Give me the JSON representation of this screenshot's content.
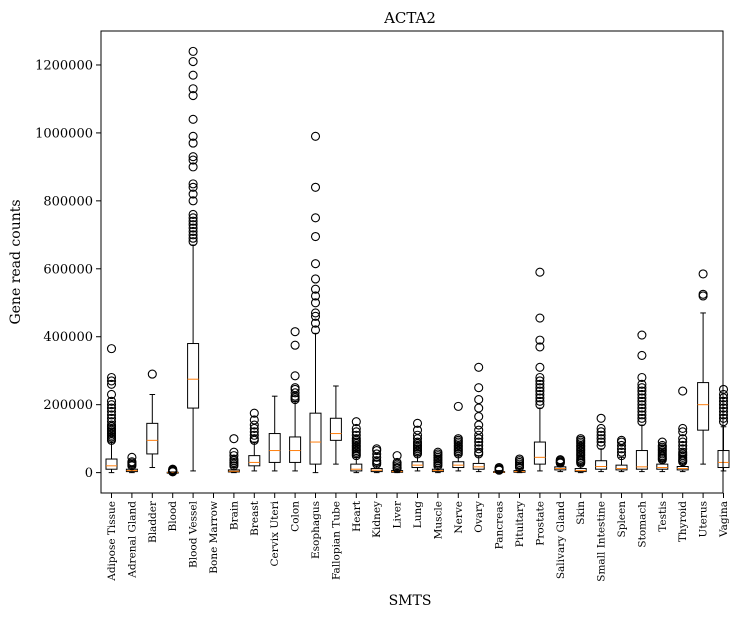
{
  "chart_data": {
    "type": "box",
    "title": "ACTA2",
    "xlabel": "SMTS",
    "ylabel": "Gene read counts",
    "ylim": [
      -60000,
      1300000
    ],
    "yticks": [
      0,
      200000,
      400000,
      600000,
      800000,
      1000000,
      1200000
    ],
    "ytick_labels": [
      "0",
      "200000",
      "400000",
      "600000",
      "800000",
      "1000000",
      "1200000"
    ],
    "grid": false,
    "legend": "none",
    "colors": {
      "box": "#000000",
      "median": "#ff7f0e",
      "flier": "#000000"
    },
    "categories": [
      "Adipose Tissue",
      "Adrenal Gland",
      "Bladder",
      "Blood",
      "Blood Vessel",
      "Bone Marrow",
      "Brain",
      "Breast",
      "Cervix Uteri",
      "Colon",
      "Esophagus",
      "Fallopian Tube",
      "Heart",
      "Kidney",
      "Liver",
      "Lung",
      "Muscle",
      "Nerve",
      "Ovary",
      "Pancreas",
      "Pituitary",
      "Prostate",
      "Salivary Gland",
      "Skin",
      "Small Intestine",
      "Spleen",
      "Stomach",
      "Testis",
      "Thyroid",
      "Uterus",
      "Vagina"
    ],
    "boxes": [
      {
        "category": "Adipose Tissue",
        "whislo": 0,
        "q1": 10000,
        "med": 20000,
        "q3": 40000,
        "whishi": 90000,
        "fliers": [
          95000,
          100000,
          105000,
          110000,
          115000,
          120000,
          125000,
          130000,
          135000,
          140000,
          150000,
          160000,
          170000,
          180000,
          190000,
          200000,
          210000,
          230000,
          260000,
          270000,
          280000,
          365000
        ]
      },
      {
        "category": "Adrenal Gland",
        "whislo": 0,
        "q1": 3000,
        "med": 6000,
        "q3": 10000,
        "whishi": 18000,
        "fliers": [
          20000,
          24000,
          28000,
          32000,
          45000
        ]
      },
      {
        "category": "Bladder",
        "whislo": 15000,
        "q1": 55000,
        "med": 95000,
        "q3": 145000,
        "whishi": 230000,
        "fliers": [
          290000
        ]
      },
      {
        "category": "Blood",
        "whislo": 0,
        "q1": 200,
        "med": 500,
        "q3": 1000,
        "whishi": 2000,
        "fliers": [
          2500,
          3000,
          4000,
          5000,
          6000,
          8000,
          10000
        ]
      },
      {
        "category": "Blood Vessel",
        "whislo": 5000,
        "q1": 190000,
        "med": 275000,
        "q3": 380000,
        "whishi": 670000,
        "fliers": [
          680000,
          690000,
          700000,
          710000,
          720000,
          730000,
          740000,
          750000,
          760000,
          800000,
          820000,
          840000,
          850000,
          900000,
          920000,
          930000,
          970000,
          990000,
          1040000,
          1110000,
          1130000,
          1170000,
          1210000,
          1240000
        ]
      },
      {
        "category": "Bone Marrow",
        "whislo": null,
        "q1": null,
        "med": null,
        "q3": null,
        "whishi": null,
        "fliers": []
      },
      {
        "category": "Brain",
        "whislo": 0,
        "q1": 2000,
        "med": 4000,
        "q3": 8000,
        "whishi": 16000,
        "fliers": [
          20000,
          25000,
          30000,
          35000,
          40000,
          50000,
          60000,
          100000
        ]
      },
      {
        "category": "Breast",
        "whislo": 5000,
        "q1": 20000,
        "med": 30000,
        "q3": 50000,
        "whishi": 90000,
        "fliers": [
          95000,
          100000,
          110000,
          120000,
          130000,
          140000,
          155000,
          175000
        ]
      },
      {
        "category": "Cervix Uteri",
        "whislo": 5000,
        "q1": 30000,
        "med": 65000,
        "q3": 115000,
        "whishi": 225000,
        "fliers": []
      },
      {
        "category": "Colon",
        "whislo": 5000,
        "q1": 30000,
        "med": 65000,
        "q3": 105000,
        "whishi": 210000,
        "fliers": [
          215000,
          220000,
          225000,
          235000,
          245000,
          250000,
          285000,
          375000,
          415000
        ]
      },
      {
        "category": "Esophagus",
        "whislo": 0,
        "q1": 25000,
        "med": 90000,
        "q3": 175000,
        "whishi": 410000,
        "fliers": [
          420000,
          440000,
          460000,
          470000,
          500000,
          520000,
          540000,
          570000,
          615000,
          695000,
          750000,
          840000,
          990000
        ]
      },
      {
        "category": "Fallopian Tube",
        "whislo": 25000,
        "q1": 95000,
        "med": 115000,
        "q3": 160000,
        "whishi": 255000,
        "fliers": []
      },
      {
        "category": "Heart",
        "whislo": 0,
        "q1": 5000,
        "med": 10000,
        "q3": 25000,
        "whishi": 45000,
        "fliers": [
          50000,
          55000,
          60000,
          65000,
          70000,
          75000,
          80000,
          85000,
          90000,
          95000,
          100000,
          110000,
          120000,
          130000,
          150000
        ]
      },
      {
        "category": "Kidney",
        "whislo": 0,
        "q1": 3000,
        "med": 7000,
        "q3": 12000,
        "whishi": 20000,
        "fliers": [
          25000,
          30000,
          35000,
          45000,
          55000,
          65000,
          70000
        ]
      },
      {
        "category": "Liver",
        "whislo": 0,
        "q1": 1000,
        "med": 3000,
        "q3": 6000,
        "whishi": 10000,
        "fliers": [
          12000,
          15000,
          20000,
          25000,
          30000,
          50000
        ]
      },
      {
        "category": "Lung",
        "whislo": 5000,
        "q1": 15000,
        "med": 22000,
        "q3": 32000,
        "whishi": 50000,
        "fliers": [
          55000,
          60000,
          65000,
          70000,
          75000,
          80000,
          85000,
          90000,
          100000,
          110000,
          125000,
          145000
        ]
      },
      {
        "category": "Muscle",
        "whislo": 0,
        "q1": 3000,
        "med": 6000,
        "q3": 10000,
        "whishi": 18000,
        "fliers": [
          20000,
          25000,
          30000,
          35000,
          40000,
          45000,
          50000,
          55000,
          60000
        ]
      },
      {
        "category": "Nerve",
        "whislo": 5000,
        "q1": 15000,
        "med": 22000,
        "q3": 32000,
        "whishi": 50000,
        "fliers": [
          55000,
          60000,
          65000,
          70000,
          75000,
          80000,
          85000,
          90000,
          95000,
          100000,
          195000
        ]
      },
      {
        "category": "Ovary",
        "whislo": 3000,
        "q1": 10000,
        "med": 17000,
        "q3": 27000,
        "whishi": 50000,
        "fliers": [
          55000,
          60000,
          70000,
          80000,
          90000,
          100000,
          110000,
          125000,
          140000,
          165000,
          190000,
          215000,
          250000,
          310000
        ]
      },
      {
        "category": "Pancreas",
        "whislo": 0,
        "q1": 500,
        "med": 1500,
        "q3": 3000,
        "whishi": 6000,
        "fliers": [
          7000,
          8000,
          10000,
          12000,
          15000
        ]
      },
      {
        "category": "Pituitary",
        "whislo": 0,
        "q1": 1000,
        "med": 3000,
        "q3": 6000,
        "whishi": 12000,
        "fliers": [
          15000,
          20000,
          25000,
          30000,
          35000,
          40000
        ]
      },
      {
        "category": "Prostate",
        "whislo": 5000,
        "q1": 25000,
        "med": 45000,
        "q3": 90000,
        "whishi": 190000,
        "fliers": [
          200000,
          210000,
          220000,
          230000,
          240000,
          250000,
          260000,
          270000,
          280000,
          310000,
          370000,
          390000,
          455000,
          590000
        ]
      },
      {
        "category": "Salivary Gland",
        "whislo": 3000,
        "q1": 8000,
        "med": 12000,
        "q3": 17000,
        "whishi": 25000,
        "fliers": [
          28000,
          30000,
          32000,
          35000,
          38000
        ]
      },
      {
        "category": "Skin",
        "whislo": 0,
        "q1": 3000,
        "med": 6000,
        "q3": 12000,
        "whishi": 25000,
        "fliers": [
          28000,
          32000,
          36000,
          40000,
          45000,
          50000,
          55000,
          60000,
          65000,
          70000,
          75000,
          80000,
          85000,
          90000,
          95000,
          100000
        ]
      },
      {
        "category": "Small Intestine",
        "whislo": 3000,
        "q1": 10000,
        "med": 18000,
        "q3": 35000,
        "whishi": 70000,
        "fliers": [
          80000,
          90000,
          100000,
          110000,
          120000,
          130000,
          160000
        ]
      },
      {
        "category": "Spleen",
        "whislo": 3000,
        "q1": 8000,
        "med": 12000,
        "q3": 22000,
        "whishi": 45000,
        "fliers": [
          50000,
          60000,
          70000,
          80000,
          90000,
          95000
        ]
      },
      {
        "category": "Stomach",
        "whislo": 3000,
        "q1": 10000,
        "med": 17000,
        "q3": 65000,
        "whishi": 140000,
        "fliers": [
          150000,
          160000,
          170000,
          180000,
          190000,
          200000,
          210000,
          220000,
          230000,
          240000,
          250000,
          260000,
          280000,
          345000,
          405000
        ]
      },
      {
        "category": "Testis",
        "whislo": 3000,
        "q1": 10000,
        "med": 15000,
        "q3": 25000,
        "whishi": 35000,
        "fliers": [
          38000,
          42000,
          46000,
          50000,
          55000,
          60000,
          65000,
          70000,
          75000,
          80000,
          90000
        ]
      },
      {
        "category": "Thyroid",
        "whislo": 3000,
        "q1": 8000,
        "med": 12000,
        "q3": 18000,
        "whishi": 28000,
        "fliers": [
          32000,
          36000,
          40000,
          45000,
          50000,
          55000,
          60000,
          70000,
          80000,
          90000,
          100000,
          120000,
          130000,
          240000
        ]
      },
      {
        "category": "Uterus",
        "whislo": 25000,
        "q1": 125000,
        "med": 200000,
        "q3": 265000,
        "whishi": 470000,
        "fliers": [
          520000,
          525000,
          585000
        ]
      },
      {
        "category": "Vagina",
        "whislo": 5000,
        "q1": 15000,
        "med": 30000,
        "q3": 65000,
        "whishi": 135000,
        "fliers": [
          150000,
          160000,
          170000,
          180000,
          190000,
          200000,
          210000,
          220000,
          230000,
          245000
        ]
      }
    ]
  }
}
